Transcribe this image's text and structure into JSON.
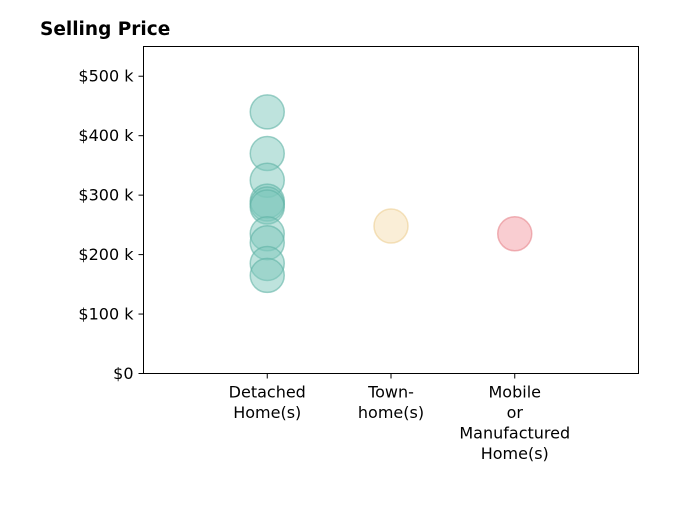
{
  "chart_data": {
    "type": "scatter",
    "title": "Selling Price",
    "xlabel": "",
    "ylabel": "",
    "categories": [
      [
        "Detached",
        "Home(s)"
      ],
      [
        "Town-",
        "home(s)"
      ],
      [
        "Mobile",
        "or",
        "Manufactured",
        "Home(s)"
      ]
    ],
    "x_range": [
      -1,
      3
    ],
    "ylim": [
      0,
      550000
    ],
    "y_ticks": [
      {
        "value": 0,
        "label": "$0"
      },
      {
        "value": 100000,
        "label": "$100 k"
      },
      {
        "value": 200000,
        "label": "$200 k"
      },
      {
        "value": 300000,
        "label": "$300 k"
      },
      {
        "value": 400000,
        "label": "$400 k"
      },
      {
        "value": 500000,
        "label": "$500 k"
      }
    ],
    "grid": false,
    "series": [
      {
        "category_index": 0,
        "color": "#7ec8bb",
        "edge_color": "#5fb3a5",
        "values": [
          440000,
          370000,
          325000,
          290000,
          285000,
          280000,
          235000,
          220000,
          185000,
          165000
        ]
      },
      {
        "category_index": 1,
        "color": "#f5deb0",
        "edge_color": "#eccf92",
        "values": [
          248000
        ]
      },
      {
        "category_index": 2,
        "color": "#f39ca3",
        "edge_color": "#e6838b",
        "values": [
          235000
        ]
      }
    ]
  }
}
